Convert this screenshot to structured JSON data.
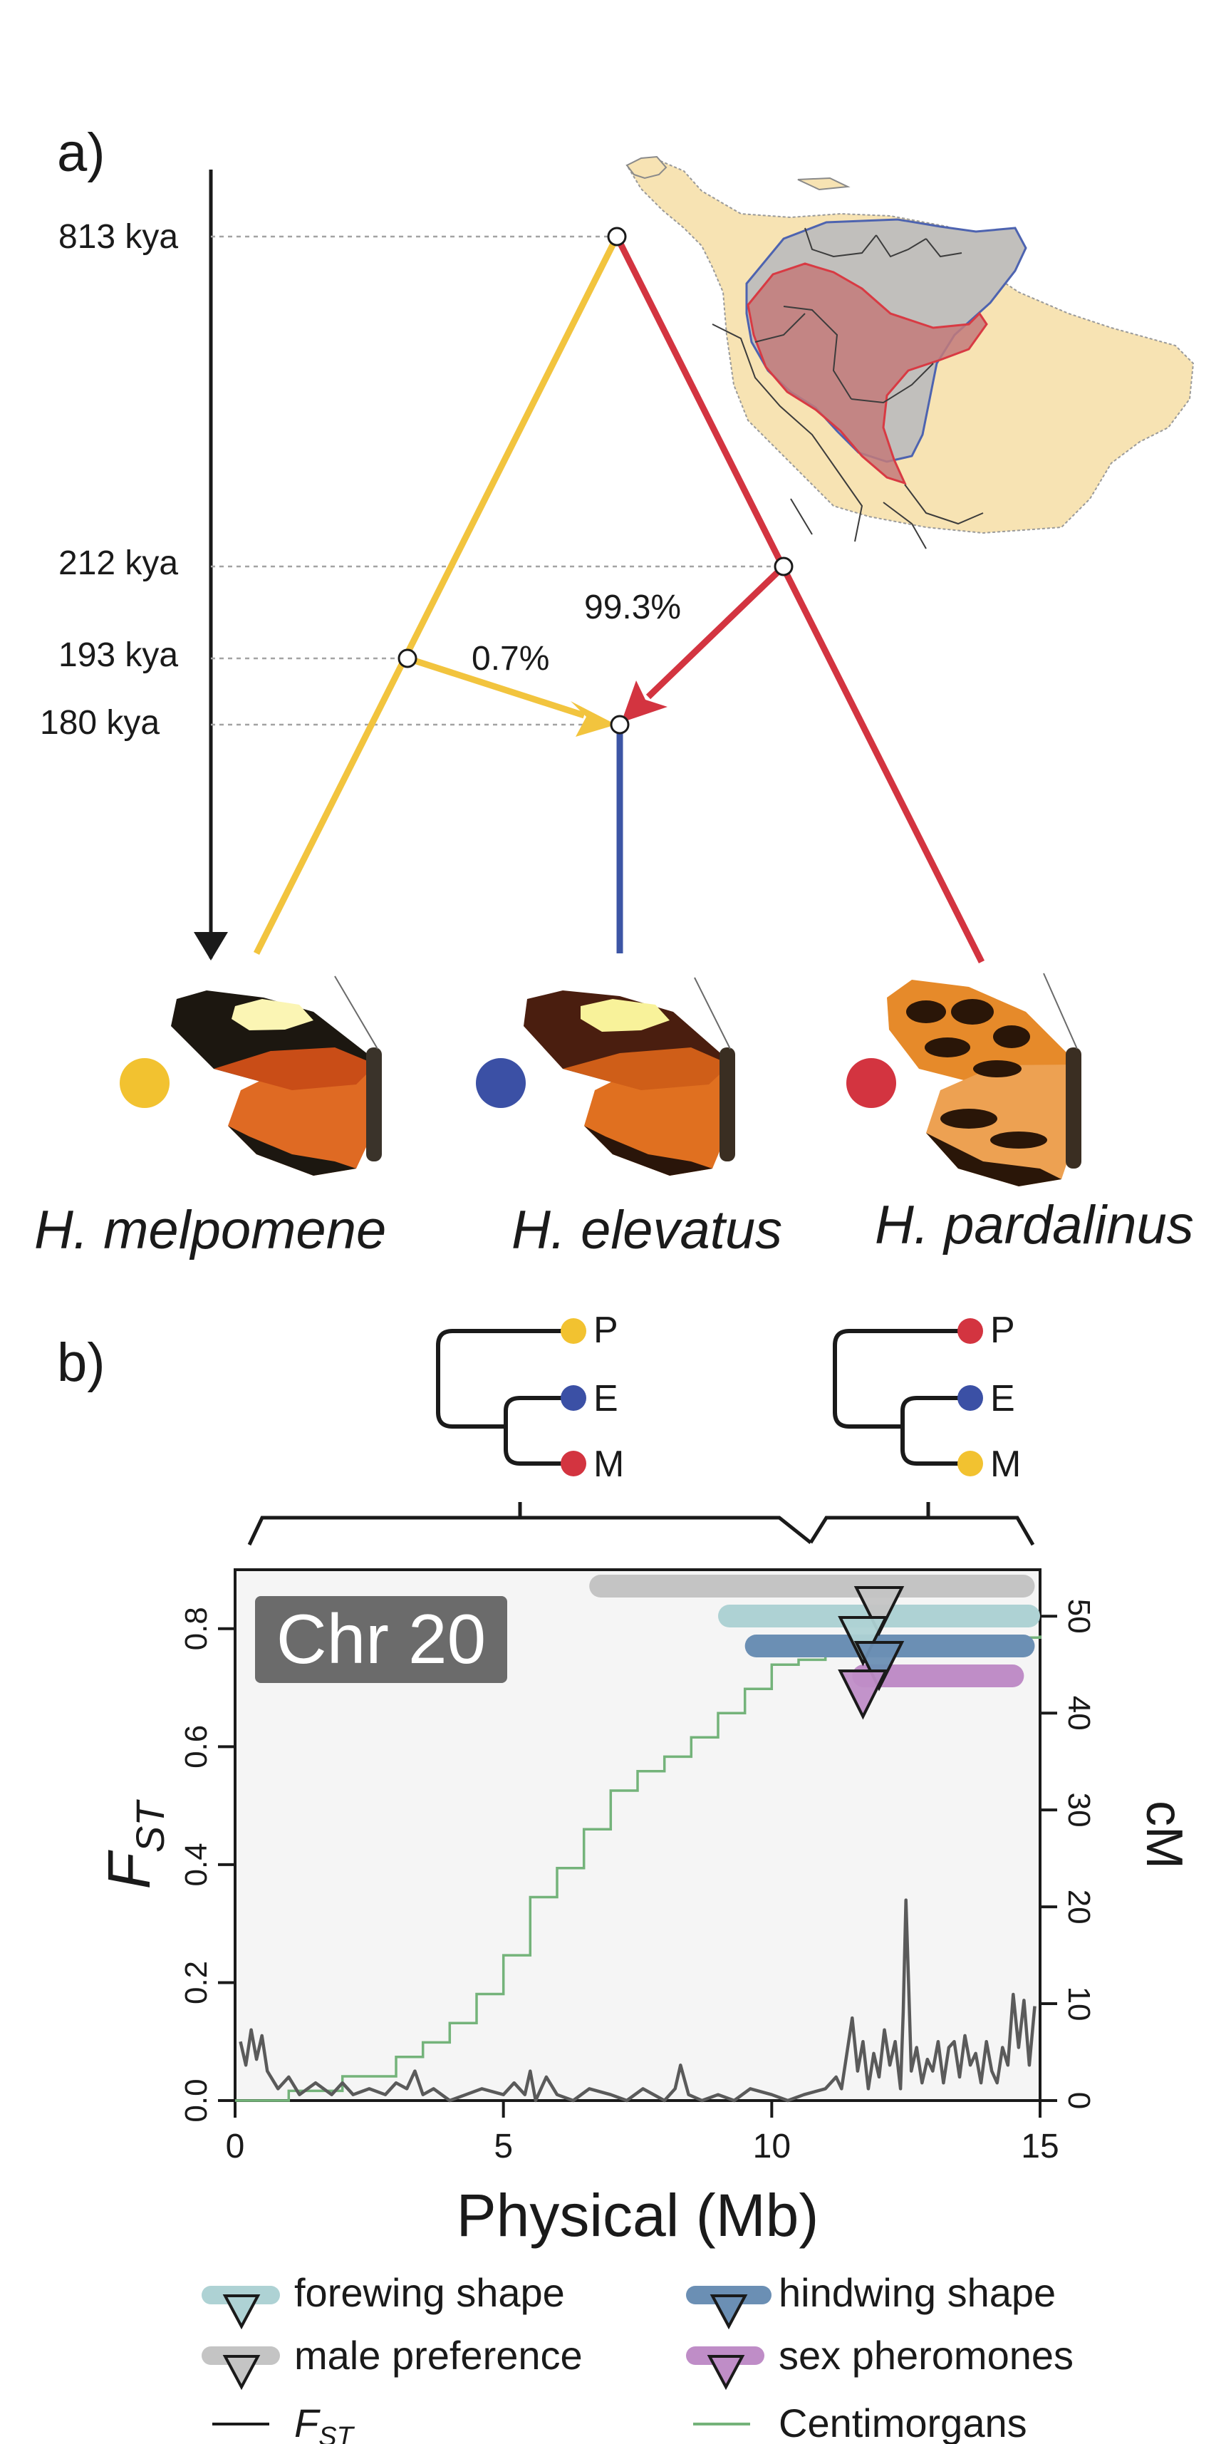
{
  "panel_a": {
    "label": "a)",
    "time_labels": [
      "813 kya",
      "212 kya",
      "193 kya",
      "180 kya"
    ],
    "gene_flow": {
      "minor": "0.7%",
      "major": "99.3%"
    },
    "species": [
      {
        "name": "H. melpomene",
        "color": "#f2c230"
      },
      {
        "name": "H. elevatus",
        "color": "#3b50a5"
      },
      {
        "name": "H. pardalinus",
        "color": "#d33440"
      }
    ],
    "branch_colors": {
      "melpomene": "#f2c43e",
      "elevatus": "#3c55a5",
      "pardalinus": "#d33440"
    }
  },
  "panel_b": {
    "label": "b)",
    "trees": [
      {
        "tips": [
          "P",
          "E",
          "M"
        ],
        "tip_colors": [
          "#f2c230",
          "#3b50a5",
          "#d33440"
        ]
      },
      {
        "tips": [
          "P",
          "E",
          "M"
        ],
        "tip_colors": [
          "#d33440",
          "#3b50a5",
          "#f2c230"
        ]
      }
    ],
    "chr_label": "Chr 20",
    "x_axis_label": "Physical (Mb)",
    "y_left_label_main": "F",
    "y_left_label_sub": "ST",
    "y_right_label": "cM",
    "x_ticks": [
      "0",
      "5",
      "10",
      "15"
    ],
    "y_left_ticks": [
      "0.0",
      "0.2",
      "0.4",
      "0.6",
      "0.8"
    ],
    "y_right_ticks": [
      "0",
      "10",
      "20",
      "30",
      "40",
      "50"
    ]
  },
  "chart_data": {
    "type": "line",
    "xlim": [
      0,
      15
    ],
    "ylim_left": [
      0,
      0.82
    ],
    "ylim_right": [
      0,
      50
    ],
    "series": [
      {
        "name": "F_ST",
        "color": "#5a5a5a",
        "axis": "left",
        "x": [
          0.1,
          0.2,
          0.3,
          0.4,
          0.5,
          0.6,
          0.8,
          1.0,
          1.2,
          1.5,
          1.8,
          2.0,
          2.2,
          2.5,
          2.8,
          3.0,
          3.2,
          3.35,
          3.5,
          3.7,
          4.0,
          4.3,
          4.6,
          5.0,
          5.2,
          5.4,
          5.5,
          5.6,
          5.8,
          6.0,
          6.3,
          6.6,
          7.0,
          7.3,
          7.6,
          8.0,
          8.2,
          8.3,
          8.45,
          8.7,
          9.0,
          9.3,
          9.6,
          10.0,
          10.3,
          10.6,
          11.0,
          11.2,
          11.3,
          11.4,
          11.5,
          11.6,
          11.7,
          11.8,
          11.9,
          12.0,
          12.1,
          12.2,
          12.3,
          12.4,
          12.45,
          12.5,
          12.55,
          12.6,
          12.7,
          12.8,
          12.9,
          13.0,
          13.1,
          13.2,
          13.3,
          13.4,
          13.5,
          13.6,
          13.7,
          13.8,
          13.9,
          14.0,
          14.1,
          14.2,
          14.3,
          14.4,
          14.5,
          14.6,
          14.7,
          14.8,
          14.9
        ],
        "values": [
          0.1,
          0.06,
          0.12,
          0.07,
          0.11,
          0.05,
          0.02,
          0.04,
          0.01,
          0.03,
          0.01,
          0.03,
          0.01,
          0.02,
          0.01,
          0.03,
          0.02,
          0.05,
          0.01,
          0.02,
          0.0,
          0.01,
          0.02,
          0.01,
          0.03,
          0.01,
          0.05,
          0.0,
          0.04,
          0.01,
          0.0,
          0.02,
          0.01,
          0.0,
          0.02,
          0.0,
          0.02,
          0.06,
          0.01,
          0.0,
          0.01,
          0.0,
          0.02,
          0.01,
          0.0,
          0.01,
          0.02,
          0.04,
          0.02,
          0.08,
          0.14,
          0.05,
          0.1,
          0.02,
          0.08,
          0.04,
          0.12,
          0.06,
          0.1,
          0.02,
          0.15,
          0.34,
          0.2,
          0.05,
          0.09,
          0.03,
          0.07,
          0.05,
          0.1,
          0.03,
          0.09,
          0.1,
          0.04,
          0.11,
          0.06,
          0.08,
          0.03,
          0.1,
          0.05,
          0.03,
          0.09,
          0.06,
          0.18,
          0.09,
          0.17,
          0.06,
          0.16
        ]
      },
      {
        "name": "Centimorgans",
        "color": "#74b37a",
        "axis": "right",
        "x": [
          0,
          1,
          2,
          3,
          3.5,
          4,
          4.5,
          5,
          5.5,
          6,
          6.5,
          7,
          7.5,
          8,
          8.5,
          9,
          9.5,
          10,
          10.5,
          11,
          11.5,
          12,
          12.5,
          13,
          13.5,
          14,
          14.5,
          15
        ],
        "values": [
          0,
          1,
          2.5,
          4.5,
          6,
          8,
          11,
          15,
          21,
          24,
          28,
          32,
          34,
          35.5,
          37.5,
          40,
          42.5,
          45,
          45.5,
          46,
          46.5,
          46.8,
          47,
          47.2,
          47.4,
          47.6,
          47.8,
          48
        ]
      }
    ],
    "qtl_bars": [
      {
        "name": "male preference",
        "color": "#c4c4c4",
        "range": [
          6.6,
          14.9
        ],
        "peak": 12.0
      },
      {
        "name": "forewing shape",
        "color": "#aed2d4",
        "range": [
          9.0,
          15.0
        ],
        "peak": 11.7
      },
      {
        "name": "hindwing shape",
        "color": "#6b8fb4",
        "range": [
          9.5,
          14.9
        ],
        "peak": 12.0
      },
      {
        "name": "sex pheromones",
        "color": "#bf8dc7",
        "range": [
          11.5,
          14.7
        ],
        "peak": 11.7
      }
    ]
  },
  "legend": {
    "items": [
      {
        "label": "forewing shape",
        "color": "#aed2d4"
      },
      {
        "label": "hindwing shape",
        "color": "#6b8fb4"
      },
      {
        "label": "male preference",
        "color": "#c4c4c4"
      },
      {
        "label": "sex pheromones",
        "color": "#bf8dc7"
      },
      {
        "label_main": "F",
        "label_sub": "ST",
        "color": "#000000"
      },
      {
        "label": "Centimorgans",
        "color": "#74b37a"
      }
    ]
  }
}
